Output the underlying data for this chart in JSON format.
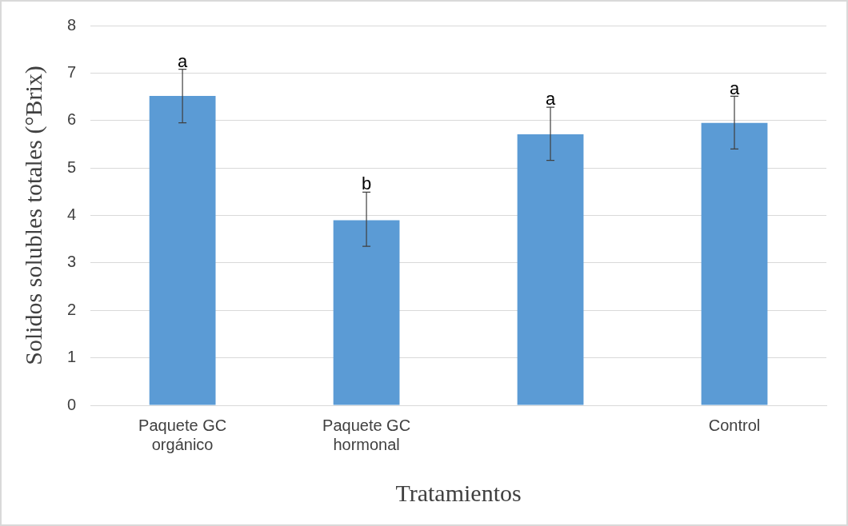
{
  "chart_data": {
    "type": "bar",
    "xlabel": "Tratamientos",
    "ylabel": "Solidos solubles totales (°Brix)",
    "categories": [
      "Paquete GC orgánico",
      "Paquete GC hormonal",
      null,
      "Control"
    ],
    "values": [
      6.52,
      3.9,
      5.71,
      5.95
    ],
    "color": "#5b9bd5",
    "errors": [
      [
        5.95,
        7.08
      ],
      [
        3.35,
        4.49
      ],
      [
        5.16,
        6.28
      ],
      [
        5.4,
        6.51
      ]
    ],
    "ylim": [
      0,
      8
    ],
    "yticks": [
      0,
      1,
      2,
      3,
      4,
      5,
      6,
      7,
      8
    ],
    "grid": "y",
    "annotations": [
      {
        "text": "a",
        "x": "Paquete GC orgánico",
        "y": 7.08
      },
      {
        "text": "b",
        "x": "Paquete GC hormonal",
        "y": 4.49
      },
      {
        "text": "a",
        "y": 6.28
      },
      {
        "text": "a",
        "x": "Control",
        "y": 6.51
      }
    ]
  }
}
